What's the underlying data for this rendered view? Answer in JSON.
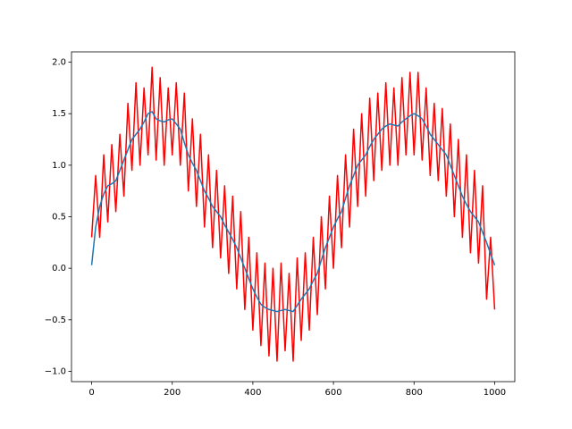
{
  "chart_data": {
    "type": "line",
    "x": [
      0,
      10,
      20,
      30,
      40,
      50,
      60,
      70,
      80,
      90,
      100,
      110,
      120,
      130,
      140,
      150,
      160,
      170,
      180,
      190,
      200,
      210,
      220,
      230,
      240,
      250,
      260,
      270,
      280,
      290,
      300,
      310,
      320,
      330,
      340,
      350,
      360,
      370,
      380,
      390,
      400,
      410,
      420,
      430,
      440,
      450,
      460,
      470,
      480,
      490,
      500,
      510,
      520,
      530,
      540,
      550,
      560,
      570,
      580,
      590,
      600,
      610,
      620,
      630,
      640,
      650,
      660,
      670,
      680,
      690,
      700,
      710,
      720,
      730,
      740,
      750,
      760,
      770,
      780,
      790,
      800,
      810,
      820,
      830,
      840,
      850,
      860,
      870,
      880,
      890,
      900,
      910,
      920,
      930,
      940,
      950,
      960,
      970,
      980,
      990,
      1000
    ],
    "series": [
      {
        "color": "#ff0000",
        "values": [
          0.3,
          0.9,
          0.3,
          1.1,
          0.45,
          1.2,
          0.55,
          1.3,
          0.7,
          1.6,
          0.95,
          1.8,
          1.0,
          1.75,
          1.1,
          1.95,
          1.05,
          1.85,
          1.0,
          1.75,
          1.1,
          1.8,
          1.0,
          1.7,
          0.75,
          1.45,
          0.6,
          1.3,
          0.4,
          1.1,
          0.2,
          0.95,
          0.1,
          0.8,
          -0.05,
          0.7,
          -0.2,
          0.55,
          -0.4,
          0.3,
          -0.6,
          0.15,
          -0.75,
          0.05,
          -0.85,
          0.0,
          -0.9,
          0.05,
          -0.8,
          -0.05,
          -0.9,
          0.1,
          -0.7,
          0.15,
          -0.6,
          0.3,
          -0.45,
          0.5,
          -0.2,
          0.7,
          0.0,
          0.9,
          0.2,
          1.1,
          0.4,
          1.35,
          0.6,
          1.5,
          0.7,
          1.65,
          0.85,
          1.7,
          0.95,
          1.8,
          1.0,
          1.75,
          1.0,
          1.85,
          1.1,
          1.9,
          1.1,
          1.9,
          1.05,
          1.75,
          0.9,
          1.6,
          0.85,
          1.55,
          0.7,
          1.4,
          0.5,
          1.25,
          0.3,
          1.1,
          0.15,
          0.95,
          0.05,
          0.8,
          -0.3,
          0.3,
          -0.4
        ]
      },
      {
        "color": "#1f77b4",
        "values": [
          0.03,
          0.4,
          0.6,
          0.72,
          0.8,
          0.82,
          0.85,
          0.95,
          1.05,
          1.15,
          1.25,
          1.3,
          1.35,
          1.42,
          1.5,
          1.52,
          1.45,
          1.43,
          1.42,
          1.44,
          1.45,
          1.4,
          1.35,
          1.22,
          1.1,
          1.02,
          0.95,
          0.85,
          0.75,
          0.68,
          0.6,
          0.55,
          0.5,
          0.42,
          0.35,
          0.28,
          0.2,
          0.1,
          0.0,
          -0.1,
          -0.2,
          -0.28,
          -0.35,
          -0.38,
          -0.4,
          -0.41,
          -0.42,
          -0.41,
          -0.4,
          -0.41,
          -0.42,
          -0.36,
          -0.3,
          -0.25,
          -0.2,
          -0.12,
          -0.05,
          0.08,
          0.2,
          0.3,
          0.4,
          0.48,
          0.55,
          0.68,
          0.8,
          0.9,
          1.0,
          1.05,
          1.1,
          1.18,
          1.25,
          1.3,
          1.35,
          1.38,
          1.4,
          1.39,
          1.38,
          1.42,
          1.45,
          1.48,
          1.5,
          1.48,
          1.45,
          1.38,
          1.3,
          1.25,
          1.2,
          1.15,
          1.1,
          1.0,
          0.9,
          0.8,
          0.7,
          0.62,
          0.55,
          0.5,
          0.45,
          0.35,
          0.25,
          0.14,
          0.03
        ]
      }
    ],
    "xlim": [
      -50,
      1050
    ],
    "xticks": [
      0,
      200,
      400,
      600,
      800,
      1000
    ],
    "ylim": [
      -1.1,
      2.1
    ],
    "yticks": [
      {
        "value": -1.0,
        "label": "−1.0"
      },
      {
        "value": -0.5,
        "label": "−0.5"
      },
      {
        "value": 0.0,
        "label": "0.0"
      },
      {
        "value": 0.5,
        "label": "0.5"
      },
      {
        "value": 1.0,
        "label": "1.0"
      },
      {
        "value": 1.5,
        "label": "1.5"
      },
      {
        "value": 2.0,
        "label": "2.0"
      }
    ],
    "grid": false
  }
}
